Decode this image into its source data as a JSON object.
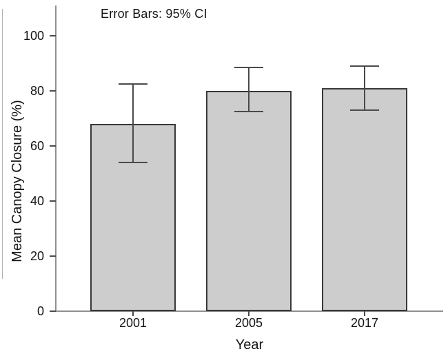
{
  "chart_data": {
    "type": "bar",
    "title": "",
    "annotation": "Error Bars: 95% CI",
    "categories": [
      "2001",
      "2005",
      "2017"
    ],
    "values": [
      68,
      80,
      81
    ],
    "error_bars": {
      "label": "95% CI",
      "lower": [
        54,
        72.5,
        73
      ],
      "upper": [
        82.5,
        88.5,
        89
      ]
    },
    "xlabel": "Year",
    "ylabel": "Mean Canopy Closure (%)",
    "y_ticks": [
      0,
      20,
      40,
      60,
      80,
      100
    ],
    "ylim": [
      0,
      110
    ],
    "grid": false,
    "legend_position": "none",
    "colors": {
      "bar_fill": "#cdcdcd",
      "bar_border": "#383838",
      "error_bar": "#4a4a4a",
      "axis_line": "#8f8f8f",
      "tick_mark": "#4a4a4a",
      "text": "#141414"
    }
  }
}
